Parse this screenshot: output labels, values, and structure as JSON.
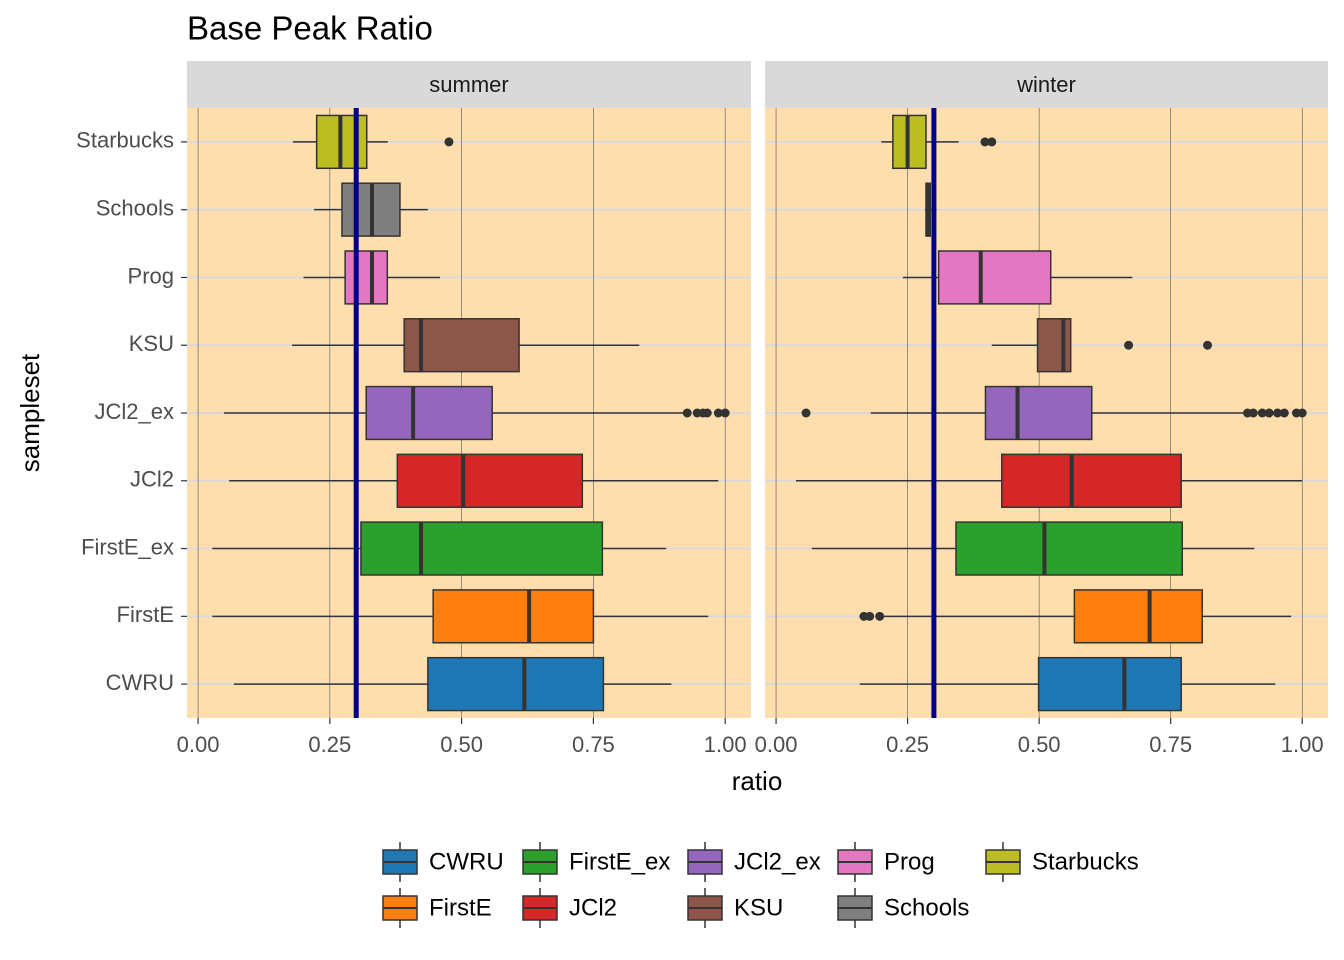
{
  "chart_data": {
    "type": "boxplot",
    "orientation": "horizontal",
    "title": "Base Peak Ratio",
    "x_label": "ratio",
    "y_label": "sampleset",
    "categories": [
      "CWRU",
      "FirstE",
      "FirstE_ex",
      "JCl2",
      "JCl2_ex",
      "KSU",
      "Prog",
      "Schools",
      "Starbucks"
    ],
    "colors": [
      "#1f77b4",
      "#ff7f0e",
      "#2ca02c",
      "#d62728",
      "#9467bd",
      "#8c564b",
      "#e377c2",
      "#7f7f7f",
      "#bcbd22"
    ],
    "xlim": [
      -0.021,
      1.049
    ],
    "xticks": [
      {
        "value": 0,
        "label": "0.00"
      },
      {
        "value": 0.25,
        "label": "0.25"
      },
      {
        "value": 0.5,
        "label": "0.50"
      },
      {
        "value": 0.75,
        "label": "0.75"
      },
      {
        "value": 1,
        "label": "1.00"
      }
    ],
    "grid": true,
    "reference_line": {
      "value": 0.3,
      "color": "#00008b"
    },
    "legend_position": "bottom",
    "panels": [
      {
        "title": "summer",
        "boxes": [
          {
            "whisker_low": 0.068,
            "q1": 0.436,
            "median": 0.619,
            "q3": 0.769,
            "whisker_high": 0.898,
            "outliers": []
          },
          {
            "whisker_low": 0.027,
            "q1": 0.446,
            "median": 0.628,
            "q3": 0.75,
            "whisker_high": 0.968,
            "outliers": []
          },
          {
            "whisker_low": 0.027,
            "q1": 0.309,
            "median": 0.423,
            "q3": 0.767,
            "whisker_high": 0.888,
            "outliers": []
          },
          {
            "whisker_low": 0.059,
            "q1": 0.378,
            "median": 0.503,
            "q3": 0.729,
            "whisker_high": 0.987,
            "outliers": []
          },
          {
            "whisker_low": 0.049,
            "q1": 0.319,
            "median": 0.408,
            "q3": 0.558,
            "whisker_high": 0.922,
            "outliers": [
              0.928,
              0.947,
              0.958,
              0.966,
              0.987,
              1.0
            ]
          },
          {
            "whisker_low": 0.178,
            "q1": 0.391,
            "median": 0.423,
            "q3": 0.609,
            "whisker_high": 0.837,
            "outliers": []
          },
          {
            "whisker_low": 0.2,
            "q1": 0.279,
            "median": 0.33,
            "q3": 0.359,
            "whisker_high": 0.459,
            "outliers": []
          },
          {
            "whisker_low": 0.22,
            "q1": 0.273,
            "median": 0.33,
            "q3": 0.383,
            "whisker_high": 0.436,
            "outliers": []
          },
          {
            "whisker_low": 0.18,
            "q1": 0.225,
            "median": 0.27,
            "q3": 0.32,
            "whisker_high": 0.36,
            "outliers": [
              0.476
            ]
          }
        ]
      },
      {
        "title": "winter",
        "boxes": [
          {
            "whisker_low": 0.159,
            "q1": 0.499,
            "median": 0.662,
            "q3": 0.77,
            "whisker_high": 0.949,
            "outliers": []
          },
          {
            "whisker_low": 0.205,
            "q1": 0.567,
            "median": 0.71,
            "q3": 0.81,
            "whisker_high": 0.979,
            "outliers": [
              0.167,
              0.178,
              0.197
            ]
          },
          {
            "whisker_low": 0.068,
            "q1": 0.342,
            "median": 0.51,
            "q3": 0.772,
            "whisker_high": 0.909,
            "outliers": []
          },
          {
            "whisker_low": 0.038,
            "q1": 0.429,
            "median": 0.562,
            "q3": 0.77,
            "whisker_high": 1.0,
            "outliers": []
          },
          {
            "whisker_low": 0.18,
            "q1": 0.398,
            "median": 0.459,
            "q3": 0.6,
            "whisker_high": 0.89,
            "outliers": [
              0.057,
              0.896,
              0.907,
              0.924,
              0.937,
              0.953,
              0.966,
              0.989,
              1.0
            ]
          },
          {
            "whisker_low": 0.41,
            "q1": 0.497,
            "median": 0.546,
            "q3": 0.56,
            "whisker_high": 0.56,
            "outliers": [
              0.67,
              0.82
            ]
          },
          {
            "whisker_low": 0.241,
            "q1": 0.309,
            "median": 0.389,
            "q3": 0.522,
            "whisker_high": 0.677,
            "outliers": []
          },
          {
            "whisker_low": 0.283,
            "q1": 0.285,
            "median": 0.289,
            "q3": 0.293,
            "whisker_high": 0.305,
            "outliers": []
          },
          {
            "whisker_low": 0.2,
            "q1": 0.222,
            "median": 0.25,
            "q3": 0.285,
            "whisker_high": 0.347,
            "outliers": [
              0.397,
              0.41
            ]
          }
        ]
      }
    ]
  }
}
